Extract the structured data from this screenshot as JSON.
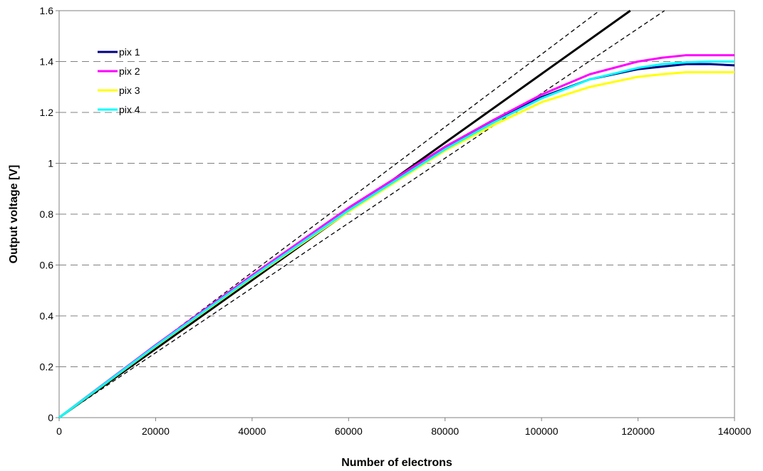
{
  "chart_data": {
    "type": "line",
    "title": "",
    "xlabel": "Number of  electrons",
    "ylabel": "Output voltage [V]",
    "xlim": [
      0,
      140000
    ],
    "ylim": [
      0,
      1.6
    ],
    "x_ticks": [
      "0",
      "20000",
      "40000",
      "60000",
      "80000",
      "100000",
      "120000",
      "140000"
    ],
    "y_ticks": [
      "0",
      "0.2",
      "0.4",
      "0.6",
      "0.8",
      "1",
      "1.2",
      "1.4",
      "1.6"
    ],
    "grid": "horizontal dashed",
    "legend_position": "top-left",
    "series": [
      {
        "name": "pix 1",
        "color": "#000080",
        "x": [
          0,
          20000,
          40000,
          60000,
          80000,
          90000,
          100000,
          110000,
          120000,
          125000,
          130000,
          135000,
          140000
        ],
        "y": [
          0,
          0.285,
          0.555,
          0.82,
          1.06,
          1.165,
          1.26,
          1.33,
          1.37,
          1.38,
          1.39,
          1.39,
          1.385
        ]
      },
      {
        "name": "pix 2",
        "color": "#ff00ff",
        "x": [
          0,
          20000,
          40000,
          60000,
          80000,
          90000,
          100000,
          110000,
          120000,
          125000,
          130000,
          135000,
          140000
        ],
        "y": [
          0,
          0.285,
          0.56,
          0.825,
          1.065,
          1.17,
          1.27,
          1.35,
          1.4,
          1.415,
          1.425,
          1.425,
          1.425
        ]
      },
      {
        "name": "pix 3",
        "color": "#ffff00",
        "x": [
          0,
          20000,
          40000,
          60000,
          80000,
          90000,
          100000,
          110000,
          120000,
          125000,
          130000,
          135000,
          140000
        ],
        "y": [
          0,
          0.28,
          0.55,
          0.81,
          1.05,
          1.15,
          1.24,
          1.3,
          1.34,
          1.35,
          1.358,
          1.358,
          1.358
        ]
      },
      {
        "name": "pix 4",
        "color": "#00ffff",
        "x": [
          0,
          20000,
          40000,
          60000,
          80000,
          90000,
          100000,
          110000,
          120000,
          125000,
          130000,
          135000,
          140000
        ],
        "y": [
          0,
          0.282,
          0.553,
          0.815,
          1.055,
          1.16,
          1.255,
          1.33,
          1.375,
          1.39,
          1.397,
          1.4,
          1.4
        ]
      }
    ],
    "reference_lines": [
      {
        "style": "solid",
        "color": "#000000",
        "x": [
          0,
          118400
        ],
        "y": [
          0,
          1.6
        ]
      },
      {
        "style": "dashed",
        "color": "#000000",
        "x": [
          0,
          112000
        ],
        "y": [
          0,
          1.6
        ]
      },
      {
        "style": "dashed",
        "color": "#000000",
        "x": [
          0,
          125500
        ],
        "y": [
          0,
          1.6
        ]
      }
    ]
  }
}
